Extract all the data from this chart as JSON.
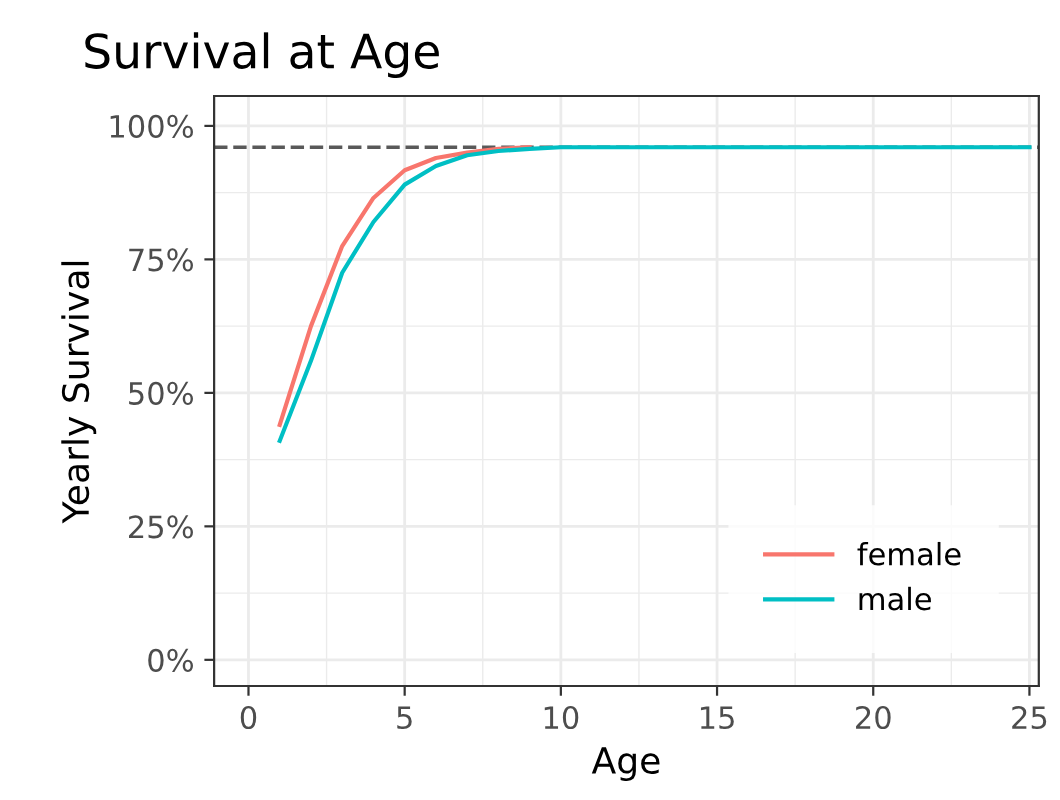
{
  "chart_data": {
    "type": "line",
    "title": "Survival at Age",
    "xlabel": "Age",
    "ylabel": "Yearly Survival",
    "x": [
      1,
      2,
      3,
      4,
      5,
      6,
      7,
      8,
      9,
      10,
      11,
      12,
      13,
      14,
      15,
      16,
      17,
      18,
      19,
      20,
      21,
      22,
      23,
      24,
      25
    ],
    "series": [
      {
        "name": "female",
        "color": "#f8766d",
        "values": [
          0.44,
          0.625,
          0.775,
          0.865,
          0.917,
          0.94,
          0.95,
          0.957,
          0.96,
          null,
          null,
          null,
          null,
          null,
          null,
          null,
          null,
          null,
          null,
          null,
          null,
          null,
          null,
          null,
          null
        ]
      },
      {
        "name": "male",
        "color": "#00bfc4",
        "values": [
          0.41,
          0.56,
          0.725,
          0.82,
          0.89,
          0.925,
          0.945,
          0.953,
          0.957,
          0.96,
          0.96,
          0.96,
          0.96,
          0.96,
          0.96,
          0.96,
          0.96,
          0.96,
          0.96,
          0.96,
          0.96,
          0.96,
          0.96,
          0.96,
          0.96
        ]
      }
    ],
    "xlim": [
      -1.1,
      25.3
    ],
    "xticks": [
      0,
      5,
      10,
      15,
      20,
      25
    ],
    "ylim": [
      -0.049,
      1.056
    ],
    "yticks": [
      {
        "value": 0,
        "label": "0%"
      },
      {
        "value": 0.25,
        "label": "25%"
      },
      {
        "value": 0.5,
        "label": "50%"
      },
      {
        "value": 0.75,
        "label": "75%"
      },
      {
        "value": 1,
        "label": "100%"
      }
    ],
    "ref_lines": [
      {
        "axis": "y",
        "value": 0.96,
        "color": "#595959",
        "line_style": "dashed"
      }
    ],
    "grid": true,
    "legend": "bottom right",
    "line_style": "solid",
    "marker": "none"
  }
}
